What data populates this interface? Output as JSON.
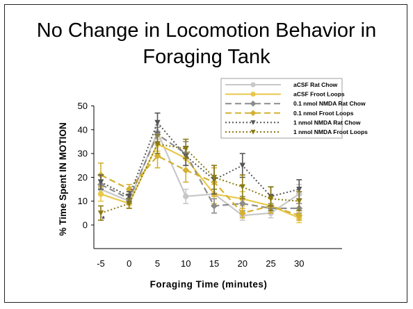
{
  "slide": {
    "title_line1": "No Change in Locomotion Behavior in",
    "title_line2": "Foraging Tank"
  },
  "chart_data": {
    "type": "line",
    "title": "",
    "xlabel": "Foraging Time (minutes)",
    "ylabel": "% Time Spent IN MOTION",
    "x": [
      -5,
      0,
      5,
      10,
      15,
      20,
      25,
      30
    ],
    "xlim": [
      -5,
      30
    ],
    "ylim": [
      0,
      50
    ],
    "yticks": [
      0,
      10,
      20,
      30,
      40,
      50
    ],
    "grid": false,
    "legend_position": "top-right",
    "annotation": "*",
    "series": [
      {
        "name": "aCSF Rat Chow",
        "color": "#c8c8c8",
        "dash": "solid",
        "marker": "circle",
        "values": [
          15,
          10,
          39,
          12,
          13,
          4,
          5,
          13
        ],
        "err": [
          2,
          1.5,
          3,
          3,
          4,
          2,
          2,
          4
        ]
      },
      {
        "name": "aCSF Froot Loops",
        "color": "#e8c84a",
        "dash": "solid",
        "marker": "circle",
        "values": [
          13,
          9,
          34,
          28,
          13,
          11,
          8,
          3
        ],
        "err": [
          3,
          2,
          3,
          5,
          4,
          3,
          3,
          2
        ]
      },
      {
        "name": "0.1 nmol NMDA Rat Chow",
        "color": "#8c8c8c",
        "dash": "long",
        "marker": "diamond",
        "values": [
          17,
          11,
          38,
          30,
          8,
          9,
          7,
          7
        ],
        "err": [
          2,
          2,
          3,
          5,
          3,
          3,
          2,
          2
        ]
      },
      {
        "name": "0.1 nmol Froot Loops",
        "color": "#d4b030",
        "dash": "long",
        "marker": "diamond",
        "values": [
          21,
          15,
          29,
          23,
          18,
          5,
          8,
          4
        ],
        "err": [
          5,
          2,
          5,
          5,
          6,
          2,
          3,
          2
        ]
      },
      {
        "name": "1 nmol NMDA Rat Chow",
        "color": "#555555",
        "dash": "dot",
        "marker": "triangle",
        "values": [
          18,
          12,
          43,
          29,
          19,
          25,
          12,
          15
        ],
        "err": [
          3,
          2,
          4,
          4,
          6,
          5,
          4,
          4
        ]
      },
      {
        "name": "1 nmol NMDA Froot Loops",
        "color": "#8a7a10",
        "dash": "dot",
        "marker": "triangle",
        "values": [
          5,
          9,
          34,
          32,
          20,
          16,
          11,
          10
        ],
        "err": [
          3,
          2,
          4,
          4,
          5,
          5,
          5,
          4
        ]
      }
    ]
  }
}
